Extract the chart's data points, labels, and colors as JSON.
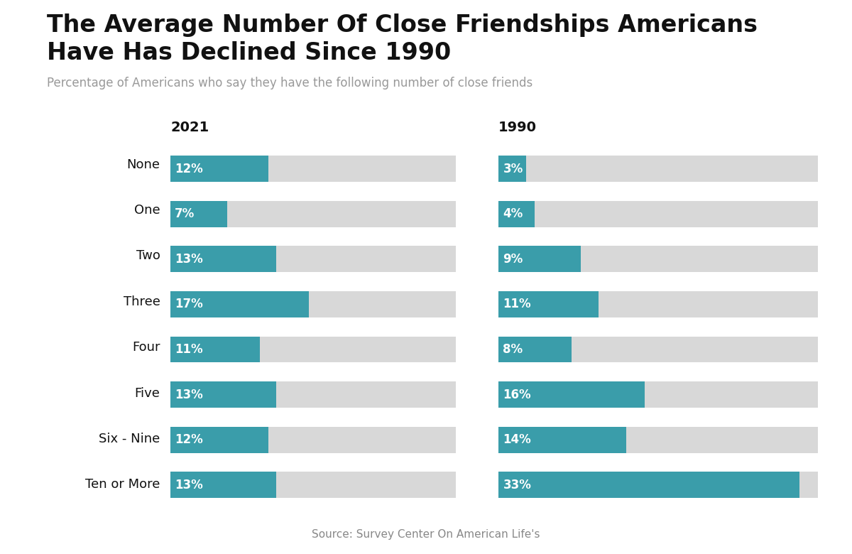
{
  "title_line1": "The Average Number Of Close Friendships Americans",
  "title_line2": "Have Has Declined Since 1990",
  "subtitle": "Percentage of Americans who say they have the following number of close friends",
  "source": "Source: Survey Center On American Life's",
  "categories": [
    "None",
    "One",
    "Two",
    "Three",
    "Four",
    "Five",
    "Six - Nine",
    "Ten or More"
  ],
  "values_2021": [
    12,
    7,
    13,
    17,
    11,
    13,
    12,
    13
  ],
  "values_1990": [
    3,
    4,
    9,
    11,
    8,
    16,
    14,
    33
  ],
  "bar_max": 35,
  "teal_color": "#3a9daa",
  "gray_color": "#d8d8d8",
  "label_color": "#ffffff",
  "title_color": "#111111",
  "subtitle_color": "#999999",
  "year_label_color": "#111111",
  "source_color": "#888888",
  "title_fontsize": 24,
  "subtitle_fontsize": 12,
  "year_fontsize": 14,
  "bar_label_fontsize": 12,
  "category_fontsize": 13,
  "source_fontsize": 11
}
